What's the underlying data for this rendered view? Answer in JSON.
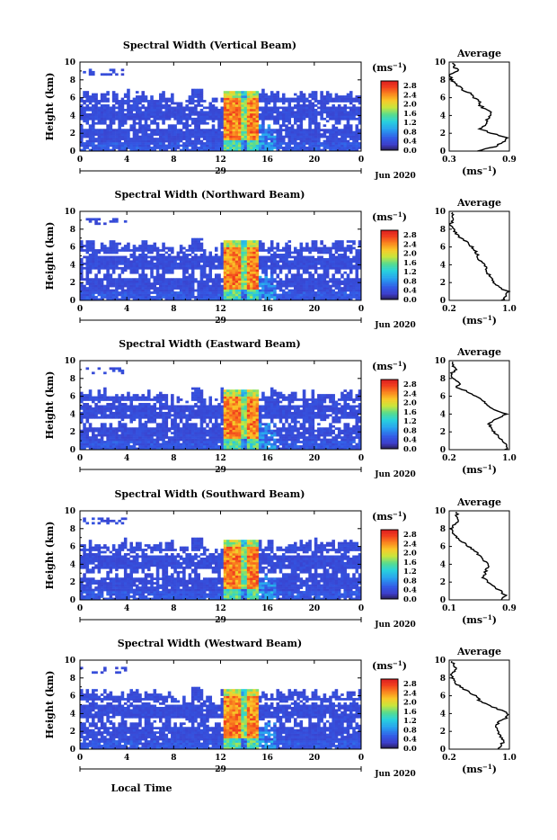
{
  "figure": {
    "xlabel": "Local Time",
    "date_label": "29",
    "month_label": "Jun 2020"
  },
  "panels": [
    {
      "title": "Spectral Width (Vertical Beam)",
      "avg_xticks": [
        "0.3",
        "0.9"
      ],
      "avg_xlim": [
        0.3,
        0.9
      ]
    },
    {
      "title": "Spectral Width (Northward Beam)",
      "avg_xticks": [
        "0.2",
        "1.0"
      ],
      "avg_xlim": [
        0.2,
        1.0
      ]
    },
    {
      "title": "Spectral Width (Eastward Beam)",
      "avg_xticks": [
        "0.2",
        "1.0"
      ],
      "avg_xlim": [
        0.2,
        1.0
      ]
    },
    {
      "title": "Spectral Width (Southward Beam)",
      "avg_xticks": [
        "0.1",
        "0.9"
      ],
      "avg_xlim": [
        0.1,
        0.9
      ]
    },
    {
      "title": "Spectral Width (Westward Beam)",
      "avg_xticks": [
        "0.2",
        "1.0"
      ],
      "avg_xlim": [
        0.2,
        1.0
      ]
    }
  ],
  "common": {
    "ylabel": "Height (km)",
    "yticks": [
      "0",
      "2",
      "4",
      "6",
      "8",
      "10"
    ],
    "ylim": [
      0,
      10
    ],
    "xticks": [
      "0",
      "4",
      "8",
      "12",
      "16",
      "20",
      "0"
    ],
    "xlim": [
      0,
      24
    ],
    "colorbar_unit": "(ms",
    "colorbar_unit_exp": "−1",
    "colorbar_ticks": [
      "0.0",
      "0.4",
      "0.8",
      "1.2",
      "1.6",
      "2.0",
      "2.4",
      "2.8"
    ],
    "colorbar_range": [
      0.0,
      3.0
    ],
    "avg_title": "Average",
    "avg_unit": "(ms",
    "avg_unit_exp": "−1"
  },
  "chart_data": {
    "type": "heatmap",
    "x": [
      0,
      4,
      8,
      12,
      16,
      20,
      24
    ],
    "y": [
      0,
      2,
      4,
      6,
      8,
      10
    ],
    "xlabel": "Local Time",
    "ylabel": "Height (km)",
    "xlim": [
      0,
      24
    ],
    "ylim": [
      0,
      10
    ],
    "colorbar": {
      "range": [
        0.0,
        3.0
      ],
      "unit": "ms^-1"
    },
    "features": {
      "background_level": 0.4,
      "convective_core": {
        "start_hour": 12.3,
        "end_hour": 15.3,
        "max_height_km": 6.8,
        "peak_level": 2.8
      },
      "echo_top_km": 6.5
    },
    "average_profile": {
      "height_km": [
        0,
        0.5,
        1,
        1.5,
        2,
        2.5,
        3,
        3.5,
        4,
        4.5,
        5,
        5.5,
        6,
        6.5,
        7,
        7.5,
        8,
        8.5,
        9,
        9.5
      ],
      "vertical": [
        0.6,
        0.75,
        0.85,
        0.88,
        0.72,
        0.6,
        0.66,
        0.68,
        0.72,
        0.7,
        0.62,
        0.6,
        0.55,
        0.5,
        0.42,
        0.38,
        0.32,
        0.3,
        0.38,
        0.35
      ],
      "northward": [
        0.9,
        0.95,
        0.98,
        0.85,
        0.8,
        0.75,
        0.72,
        0.7,
        0.68,
        0.6,
        0.58,
        0.55,
        0.5,
        0.45,
        0.35,
        0.3,
        0.25,
        0.22,
        0.25,
        0.24
      ],
      "eastward": [
        0.95,
        0.98,
        0.9,
        0.85,
        0.8,
        0.75,
        0.72,
        0.85,
        0.95,
        0.8,
        0.72,
        0.65,
        0.55,
        0.45,
        0.3,
        0.35,
        0.25,
        0.22,
        0.3,
        0.25
      ],
      "southward": [
        0.8,
        0.85,
        0.78,
        0.7,
        0.62,
        0.55,
        0.58,
        0.6,
        0.62,
        0.55,
        0.5,
        0.45,
        0.35,
        0.28,
        0.2,
        0.15,
        0.12,
        0.18,
        0.22,
        0.2
      ],
      "westward": [
        0.85,
        0.9,
        0.92,
        0.88,
        0.85,
        0.82,
        0.85,
        0.95,
        0.98,
        0.85,
        0.7,
        0.6,
        0.55,
        0.45,
        0.35,
        0.28,
        0.25,
        0.22,
        0.3,
        0.25
      ]
    }
  }
}
